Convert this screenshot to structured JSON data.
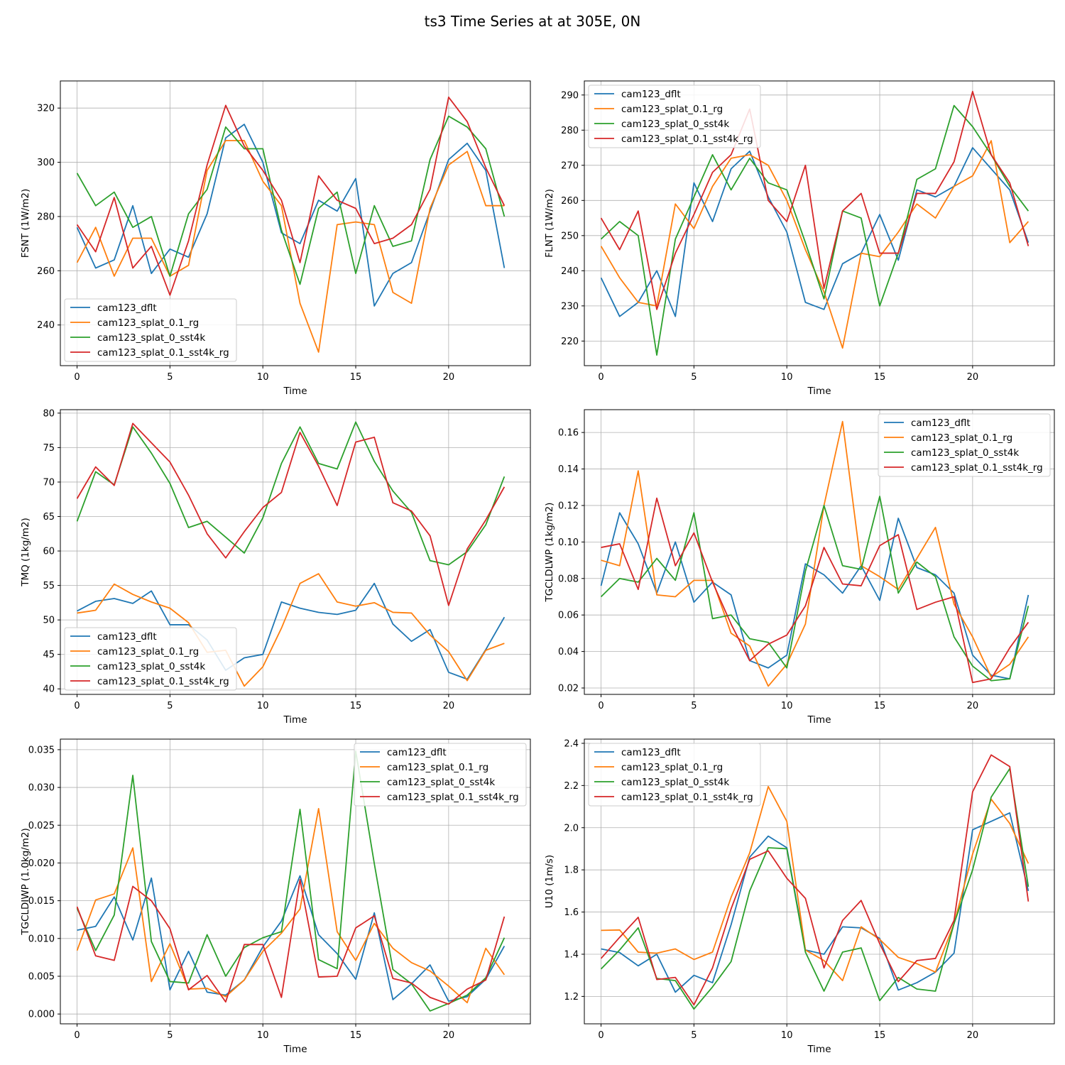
{
  "figure_title": "ts3 Time Series at at 305E, 0N",
  "colors": {
    "cam123_dflt": "#1f77b4",
    "cam123_splat_0.1_rg": "#ff7f0e",
    "cam123_splat_0_sst4k": "#2ca02c",
    "cam123_splat_0.1_sst4k_rg": "#d62728"
  },
  "chart_data": [
    {
      "type": "line",
      "xlabel": "Time",
      "ylabel": "FSNT (1W/m2)",
      "xlim": [
        -0.9,
        24.4
      ],
      "ylim": [
        225,
        330
      ],
      "xticks": [
        0,
        5,
        10,
        15,
        20
      ],
      "yticks": [
        240,
        260,
        280,
        300,
        320
      ],
      "legend": "lower left",
      "series": [
        {
          "name": "cam123_dflt",
          "values": [
            276,
            261,
            264,
            284,
            259,
            268,
            265,
            281,
            309,
            314,
            300,
            274,
            270,
            286,
            282,
            294,
            247,
            259,
            263,
            282,
            301,
            307,
            297,
            261
          ]
        },
        {
          "name": "cam123_splat_0.1_rg",
          "values": [
            263,
            276,
            258,
            272,
            272,
            258,
            262,
            297,
            308,
            308,
            293,
            284,
            248,
            230,
            277,
            278,
            277,
            252,
            248,
            283,
            299,
            304,
            284,
            284
          ]
        },
        {
          "name": "cam123_splat_0_sst4k",
          "values": [
            296,
            284,
            289,
            276,
            280,
            258,
            281,
            290,
            313,
            305,
            305,
            275,
            255,
            283,
            289,
            259,
            284,
            269,
            271,
            301,
            317,
            313,
            305,
            280
          ]
        },
        {
          "name": "cam123_splat_0.1_sst4k_rg",
          "values": [
            277,
            267,
            287,
            261,
            269,
            251,
            271,
            299,
            321,
            306,
            297,
            286,
            263,
            295,
            286,
            283,
            270,
            272,
            277,
            290,
            324,
            315,
            298,
            284
          ]
        }
      ]
    },
    {
      "type": "line",
      "xlabel": "Time",
      "ylabel": "FLNT (1W/m2)",
      "xlim": [
        -0.9,
        24.4
      ],
      "ylim": [
        213,
        294
      ],
      "xticks": [
        0,
        5,
        10,
        15,
        20
      ],
      "yticks": [
        220,
        230,
        240,
        250,
        260,
        270,
        280,
        290
      ],
      "legend": "upper left",
      "series": [
        {
          "name": "cam123_dflt",
          "values": [
            238,
            227,
            231,
            240,
            227,
            265,
            254,
            269,
            274,
            261,
            251,
            231,
            229,
            242,
            245,
            256,
            243,
            263,
            261,
            264,
            275,
            269,
            263,
            248
          ]
        },
        {
          "name": "cam123_splat_0.1_rg",
          "values": [
            247,
            238,
            231,
            230,
            259,
            252,
            264,
            272,
            273,
            270,
            260,
            246,
            234,
            218,
            245,
            244,
            251,
            259,
            255,
            264,
            267,
            277,
            248,
            254
          ]
        },
        {
          "name": "cam123_splat_0_sst4k",
          "values": [
            249,
            254,
            250,
            216,
            249,
            261,
            273,
            263,
            272,
            265,
            263,
            248,
            232,
            257,
            255,
            230,
            245,
            266,
            269,
            287,
            281,
            273,
            264,
            257
          ]
        },
        {
          "name": "cam123_splat_0.1_sst4k_rg",
          "values": [
            255,
            246,
            257,
            229,
            245,
            256,
            268,
            273,
            286,
            260,
            254,
            270,
            235,
            257,
            262,
            245,
            245,
            262,
            262,
            271,
            291,
            273,
            265,
            247
          ]
        }
      ]
    },
    {
      "type": "line",
      "xlabel": "Time",
      "ylabel": "TMQ (1kg/m2)",
      "xlim": [
        -0.9,
        24.4
      ],
      "ylim": [
        39.2,
        80.5
      ],
      "xticks": [
        0,
        5,
        10,
        15,
        20
      ],
      "yticks": [
        40,
        45,
        50,
        55,
        60,
        65,
        70,
        75,
        80
      ],
      "legend": "lower left",
      "series": [
        {
          "name": "cam123_dflt",
          "values": [
            51.3,
            52.7,
            53.1,
            52.4,
            54.2,
            49.3,
            49.3,
            47.1,
            42.7,
            44.5,
            45.0,
            52.6,
            51.7,
            51.1,
            50.8,
            51.4,
            55.3,
            49.4,
            46.9,
            48.6,
            42.4,
            41.4,
            45.7,
            50.4
          ]
        },
        {
          "name": "cam123_splat_0.1_rg",
          "values": [
            51.0,
            51.4,
            55.2,
            53.7,
            52.6,
            51.7,
            49.6,
            45.3,
            45.6,
            40.4,
            43.2,
            48.8,
            55.3,
            56.7,
            52.6,
            52.0,
            52.5,
            51.1,
            51.0,
            47.8,
            45.4,
            41.2,
            45.6,
            46.6
          ]
        },
        {
          "name": "cam123_splat_0_sst4k",
          "values": [
            64.3,
            71.5,
            69.6,
            78.0,
            74.2,
            69.8,
            63.4,
            64.3,
            62.0,
            59.7,
            64.8,
            72.7,
            78.0,
            72.7,
            71.9,
            78.7,
            73.0,
            68.7,
            65.6,
            58.6,
            58.0,
            59.9,
            63.8,
            70.8
          ]
        },
        {
          "name": "cam123_splat_0.1_sst4k_rg",
          "values": [
            67.6,
            72.2,
            69.5,
            78.5,
            75.7,
            72.9,
            68.1,
            62.5,
            59.0,
            62.8,
            66.3,
            68.5,
            77.2,
            72.3,
            66.6,
            75.8,
            76.5,
            67.0,
            65.8,
            62.2,
            52.1,
            60.3,
            64.5,
            69.3
          ]
        }
      ]
    },
    {
      "type": "line",
      "xlabel": "Time",
      "ylabel": "TGCLDLWP (1kg/m2)",
      "xlim": [
        -0.9,
        24.4
      ],
      "ylim": [
        0.0165,
        0.1725
      ],
      "xticks": [
        0,
        5,
        10,
        15,
        20
      ],
      "yticks": [
        0.02,
        0.04,
        0.06,
        0.08,
        0.1,
        0.12,
        0.14,
        0.16
      ],
      "ytick_labels": [
        "0.02",
        "0.04",
        "0.06",
        "0.08",
        "0.10",
        "0.12",
        "0.14",
        "0.16"
      ],
      "legend": "upper right",
      "series": [
        {
          "name": "cam123_dflt",
          "values": [
            0.076,
            0.116,
            0.099,
            0.072,
            0.1,
            0.067,
            0.078,
            0.071,
            0.035,
            0.031,
            0.038,
            0.088,
            0.082,
            0.072,
            0.087,
            0.068,
            0.113,
            0.086,
            0.082,
            0.072,
            0.038,
            0.027,
            0.025,
            0.071
          ]
        },
        {
          "name": "cam123_splat_0.1_rg",
          "values": [
            0.09,
            0.087,
            0.139,
            0.071,
            0.07,
            0.079,
            0.079,
            0.05,
            0.043,
            0.021,
            0.033,
            0.055,
            0.12,
            0.166,
            0.087,
            0.081,
            0.074,
            0.091,
            0.108,
            0.066,
            0.048,
            0.026,
            0.033,
            0.048
          ]
        },
        {
          "name": "cam123_splat_0_sst4k",
          "values": [
            0.07,
            0.08,
            0.078,
            0.091,
            0.079,
            0.116,
            0.058,
            0.06,
            0.047,
            0.045,
            0.031,
            0.084,
            0.12,
            0.087,
            0.085,
            0.125,
            0.072,
            0.089,
            0.081,
            0.048,
            0.032,
            0.024,
            0.025,
            0.065
          ]
        },
        {
          "name": "cam123_splat_0.1_sst4k_rg",
          "values": [
            0.097,
            0.099,
            0.074,
            0.124,
            0.087,
            0.105,
            0.078,
            0.055,
            0.035,
            0.044,
            0.049,
            0.065,
            0.097,
            0.077,
            0.076,
            0.098,
            0.104,
            0.063,
            0.067,
            0.07,
            0.023,
            0.025,
            0.042,
            0.056
          ]
        }
      ]
    },
    {
      "type": "line",
      "xlabel": "Time",
      "ylabel": "TGCLDIWP (1.0kg/m2)",
      "xlim": [
        -0.9,
        24.4
      ],
      "ylim": [
        -0.0013,
        0.0364
      ],
      "xticks": [
        0,
        5,
        10,
        15,
        20
      ],
      "yticks": [
        0.0,
        0.005,
        0.01,
        0.015,
        0.02,
        0.025,
        0.03,
        0.035
      ],
      "ytick_labels": [
        "0.000",
        "0.005",
        "0.010",
        "0.015",
        "0.020",
        "0.025",
        "0.030",
        "0.035"
      ],
      "legend": "upper right",
      "series": [
        {
          "name": "cam123_dflt",
          "values": [
            0.0111,
            0.0116,
            0.0155,
            0.0098,
            0.018,
            0.0032,
            0.0083,
            0.0029,
            0.0025,
            0.0045,
            0.0089,
            0.0123,
            0.0183,
            0.0105,
            0.008,
            0.0046,
            0.0134,
            0.0019,
            0.004,
            0.0065,
            0.0017,
            0.0023,
            0.0046,
            0.009
          ]
        },
        {
          "name": "cam123_splat_0.1_rg",
          "values": [
            0.0084,
            0.0151,
            0.0159,
            0.022,
            0.0043,
            0.0093,
            0.0033,
            0.0034,
            0.0023,
            0.0045,
            0.0083,
            0.0107,
            0.0139,
            0.0272,
            0.0109,
            0.0071,
            0.012,
            0.0087,
            0.0068,
            0.0057,
            0.0037,
            0.0015,
            0.0087,
            0.0052
          ]
        },
        {
          "name": "cam123_splat_0_sst4k",
          "values": [
            0.014,
            0.0084,
            0.0131,
            0.0316,
            0.0096,
            0.0043,
            0.0041,
            0.0105,
            0.005,
            0.0088,
            0.0101,
            0.0109,
            0.0271,
            0.0072,
            0.006,
            0.0348,
            0.0199,
            0.0059,
            0.004,
            0.0004,
            0.0014,
            0.0025,
            0.0048,
            0.0101
          ]
        },
        {
          "name": "cam123_splat_0.1_sst4k_rg",
          "values": [
            0.0142,
            0.0077,
            0.0071,
            0.0169,
            0.015,
            0.0113,
            0.0032,
            0.0051,
            0.0016,
            0.0092,
            0.0092,
            0.0022,
            0.0178,
            0.0049,
            0.005,
            0.0114,
            0.013,
            0.0047,
            0.0041,
            0.0022,
            0.0013,
            0.0033,
            0.0045,
            0.0129
          ]
        }
      ]
    },
    {
      "type": "line",
      "xlabel": "Time",
      "ylabel": "U10 (1m/s)",
      "xlim": [
        -0.9,
        24.4
      ],
      "ylim": [
        1.07,
        2.42
      ],
      "xticks": [
        0,
        5,
        10,
        15,
        20
      ],
      "yticks": [
        1.2,
        1.4,
        1.6,
        1.8,
        2.0,
        2.2,
        2.4
      ],
      "ytick_labels": [
        "1.2",
        "1.4",
        "1.6",
        "1.8",
        "2.0",
        "2.2",
        "2.4"
      ],
      "legend": "upper left",
      "series": [
        {
          "name": "cam123_dflt",
          "values": [
            1.425,
            1.408,
            1.345,
            1.4,
            1.22,
            1.3,
            1.265,
            1.54,
            1.86,
            1.96,
            1.905,
            1.42,
            1.4,
            1.53,
            1.525,
            1.475,
            1.23,
            1.265,
            1.315,
            1.405,
            1.99,
            2.03,
            2.07,
            1.7
          ]
        },
        {
          "name": "cam123_splat_0.1_rg",
          "values": [
            1.513,
            1.515,
            1.41,
            1.405,
            1.425,
            1.375,
            1.41,
            1.67,
            1.88,
            2.195,
            2.03,
            1.42,
            1.37,
            1.275,
            1.53,
            1.47,
            1.385,
            1.355,
            1.315,
            1.545,
            1.875,
            2.135,
            2.02,
            1.83
          ]
        },
        {
          "name": "cam123_splat_0_sst4k",
          "values": [
            1.33,
            1.42,
            1.525,
            1.285,
            1.275,
            1.14,
            1.245,
            1.365,
            1.7,
            1.905,
            1.9,
            1.41,
            1.225,
            1.41,
            1.43,
            1.18,
            1.29,
            1.235,
            1.225,
            1.545,
            1.8,
            2.145,
            2.28,
            1.72
          ]
        },
        {
          "name": "cam123_splat_0.1_sst4k_rg",
          "values": [
            1.38,
            1.48,
            1.575,
            1.28,
            1.29,
            1.16,
            1.335,
            1.615,
            1.85,
            1.89,
            1.76,
            1.665,
            1.335,
            1.56,
            1.655,
            1.45,
            1.27,
            1.37,
            1.38,
            1.56,
            2.17,
            2.345,
            2.29,
            1.65
          ]
        }
      ]
    }
  ]
}
